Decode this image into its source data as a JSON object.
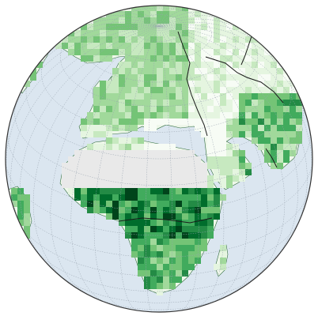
{
  "map": {
    "projection": "orthographic",
    "center_lon": 25,
    "center_lat": 30,
    "graticule_step_deg": 10,
    "colors": {
      "ocean": "#dbe6f0",
      "land_base": "#eef7ea",
      "no_data": "#e9e9e9",
      "graticule": "#9aa5b1",
      "border": "#1a1a1a",
      "outline": "#333333"
    },
    "color_scale": [
      "#f7fcf5",
      "#e5f5e0",
      "#c7e9c0",
      "#a1d99b",
      "#74c476",
      "#41ab5d",
      "#238b45",
      "#006d2c",
      "#00441b"
    ]
  }
}
